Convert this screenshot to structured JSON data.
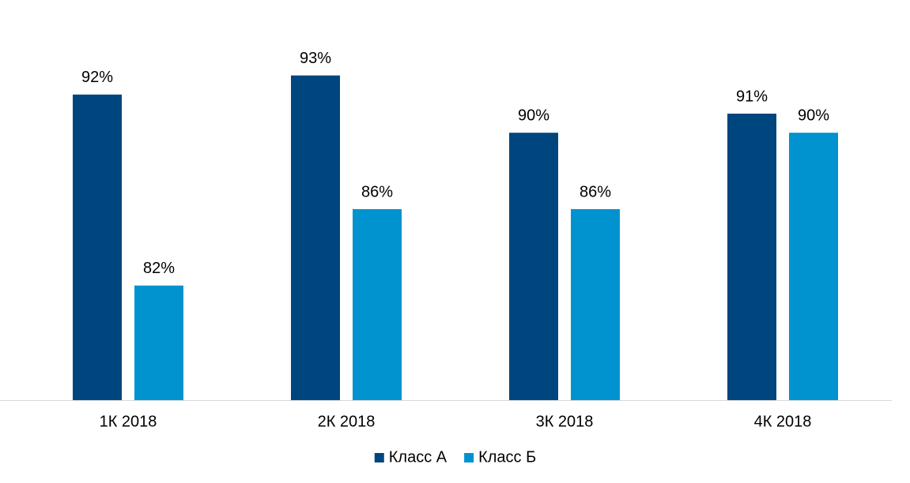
{
  "chart_data": {
    "type": "bar",
    "categories": [
      "1К 2018",
      "2К 2018",
      "3К 2018",
      "4К 2018"
    ],
    "series": [
      {
        "name": "Класс А",
        "color": "#00467e",
        "values": [
          92,
          93,
          90,
          91
        ],
        "value_labels": [
          "92%",
          "93%",
          "90%",
          "91%"
        ]
      },
      {
        "name": "Класс Б",
        "color": "#0093cf",
        "values": [
          82,
          86,
          86,
          90
        ],
        "value_labels": [
          "82%",
          "86%",
          "86%",
          "90%"
        ]
      }
    ],
    "ylim": [
      76,
      96
    ],
    "legend": "bottom"
  }
}
